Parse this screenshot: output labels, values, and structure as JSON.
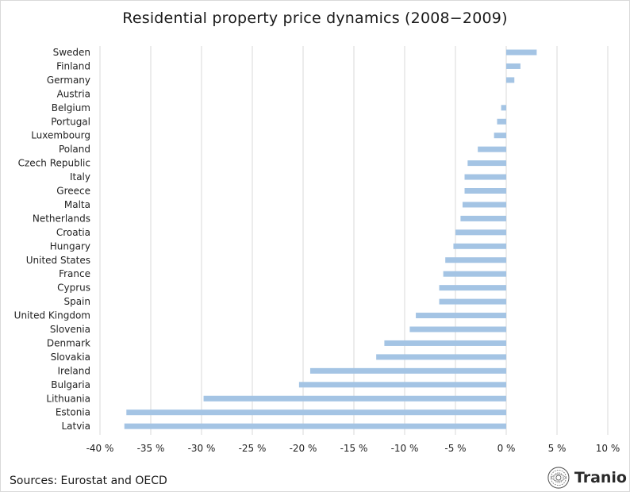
{
  "chart_data": {
    "type": "bar",
    "orientation": "horizontal",
    "title": "Residential property price dynamics (2008−2009)",
    "categories": [
      "Sweden",
      "Finland",
      "Germany",
      "Austria",
      "Belgium",
      "Portugal",
      "Luxembourg",
      "Poland",
      "Czech Republic",
      "Italy",
      "Greece",
      "Malta",
      "Netherlands",
      "Croatia",
      "Hungary",
      "United States",
      "France",
      "Cyprus",
      "Spain",
      "United Kingdom",
      "Slovenia",
      "Denmark",
      "Slovakia",
      "Ireland",
      "Bulgaria",
      "Lithuania",
      "Estonia",
      "Latvia"
    ],
    "values": [
      3.0,
      1.4,
      0.8,
      0.0,
      -0.5,
      -0.9,
      -1.2,
      -2.8,
      -3.8,
      -4.1,
      -4.1,
      -4.3,
      -4.5,
      -5.0,
      -5.2,
      -6.0,
      -6.2,
      -6.6,
      -6.6,
      -8.9,
      -9.5,
      -12.0,
      -12.8,
      -19.3,
      -20.4,
      -29.8,
      -37.4,
      -37.6
    ],
    "xlim": [
      -40,
      10
    ],
    "xticks": [
      -40,
      -35,
      -30,
      -25,
      -20,
      -15,
      -10,
      -5,
      0,
      5,
      10
    ],
    "xtick_labels": [
      "-40 %",
      "-35 %",
      "-30 %",
      "-25 %",
      "-20 %",
      "-15 %",
      "-10 %",
      "-5 %",
      "0 %",
      "5 %",
      "10 %"
    ],
    "grid": "vertical",
    "bar_color": "#a4c4e4",
    "grid_color": "#d9d9d9"
  },
  "footer": {
    "source": "Sources: Eurostat and OECD",
    "logo_text": "Tranio",
    "logo_icon": "tranio-logo-icon"
  }
}
